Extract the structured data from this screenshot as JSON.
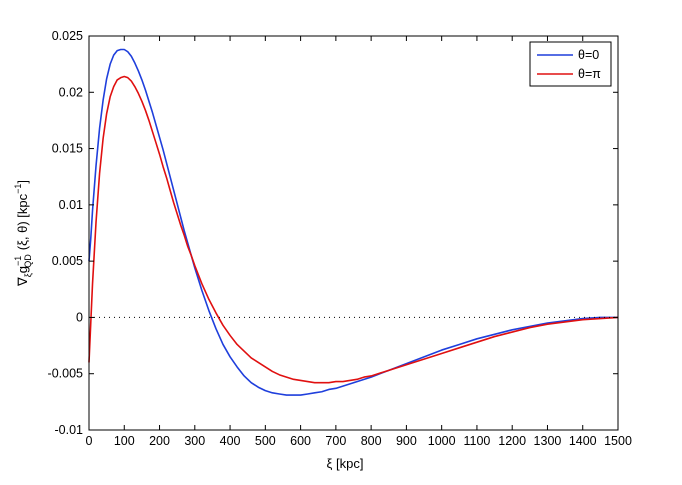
{
  "chart_data": {
    "type": "line",
    "xlabel": "ξ   [kpc]",
    "ylabel_main": "∇",
    "ylabel_sub": "ξ",
    "ylabel_g": "g",
    "ylabel_g_sup": "−1",
    "ylabel_g_sub": "QD",
    "ylabel_rest": "(ξ, θ)    [kpc",
    "ylabel_unit_sup": "−1",
    "ylabel_close": "]",
    "xlim": [
      0,
      1500
    ],
    "ylim": [
      -0.01,
      0.025
    ],
    "xticks": [
      0,
      100,
      200,
      300,
      400,
      500,
      600,
      700,
      800,
      900,
      1000,
      1100,
      1200,
      1300,
      1400,
      1500
    ],
    "xtick_labels": [
      "0",
      "100",
      "200",
      "300",
      "400",
      "500",
      "600",
      "700",
      "800",
      "900",
      "1000",
      "1100",
      "1200",
      "1300",
      "1400",
      "1500"
    ],
    "yticks": [
      -0.01,
      -0.005,
      0,
      0.005,
      0.01,
      0.015,
      0.02,
      0.025
    ],
    "ytick_labels": [
      "-0.01",
      "-0.005",
      "0",
      "0.005",
      "0.01",
      "0.015",
      "0.02",
      "0.025"
    ],
    "grid": false,
    "zero_line": "dotted",
    "legend_position": "top-right",
    "series": [
      {
        "name": "θ=0",
        "color": "#1f3fdc",
        "x": [
          0,
          5,
          10,
          20,
          30,
          40,
          50,
          60,
          70,
          80,
          90,
          100,
          110,
          120,
          130,
          140,
          150,
          160,
          170,
          180,
          190,
          200,
          210,
          220,
          230,
          240,
          250,
          260,
          270,
          280,
          290,
          300,
          320,
          340,
          360,
          380,
          400,
          420,
          440,
          460,
          480,
          500,
          520,
          540,
          560,
          580,
          600,
          620,
          640,
          660,
          680,
          700,
          720,
          740,
          760,
          780,
          800,
          850,
          900,
          950,
          1000,
          1050,
          1100,
          1150,
          1200,
          1250,
          1300,
          1350,
          1400,
          1450,
          1500
        ],
        "y": [
          0.005,
          0.007,
          0.0095,
          0.0135,
          0.0168,
          0.0193,
          0.0212,
          0.0225,
          0.0233,
          0.0237,
          0.0238,
          0.0238,
          0.0236,
          0.0232,
          0.0226,
          0.0219,
          0.0211,
          0.0202,
          0.0192,
          0.0182,
          0.0171,
          0.016,
          0.0149,
          0.0137,
          0.0125,
          0.0113,
          0.0101,
          0.0089,
          0.0077,
          0.0066,
          0.0055,
          0.0044,
          0.0024,
          0.0006,
          -0.001,
          -0.0024,
          -0.0035,
          -0.0044,
          -0.0052,
          -0.0058,
          -0.0062,
          -0.0065,
          -0.0067,
          -0.0068,
          -0.0069,
          -0.0069,
          -0.0069,
          -0.0068,
          -0.0067,
          -0.0066,
          -0.0064,
          -0.0063,
          -0.0061,
          -0.0059,
          -0.0057,
          -0.0055,
          -0.0053,
          -0.0047,
          -0.0041,
          -0.0035,
          -0.0029,
          -0.0024,
          -0.0019,
          -0.0015,
          -0.0011,
          -0.0008,
          -0.0005,
          -0.0003,
          -0.0001,
          0.0,
          0.0
        ]
      },
      {
        "name": "θ=π",
        "color": "#e01010",
        "x": [
          0,
          5,
          10,
          20,
          30,
          40,
          50,
          60,
          70,
          80,
          90,
          100,
          110,
          120,
          130,
          140,
          150,
          160,
          170,
          180,
          190,
          200,
          210,
          220,
          230,
          240,
          250,
          260,
          270,
          280,
          290,
          300,
          320,
          340,
          360,
          380,
          400,
          420,
          440,
          460,
          480,
          500,
          520,
          540,
          560,
          580,
          600,
          620,
          640,
          660,
          680,
          700,
          720,
          740,
          760,
          780,
          800,
          850,
          900,
          950,
          1000,
          1050,
          1100,
          1150,
          1200,
          1250,
          1300,
          1350,
          1400,
          1450,
          1500
        ],
        "y": [
          -0.004,
          -0.0005,
          0.003,
          0.0085,
          0.0128,
          0.0159,
          0.0181,
          0.0196,
          0.0205,
          0.0211,
          0.0213,
          0.0214,
          0.0213,
          0.021,
          0.0205,
          0.0199,
          0.0192,
          0.0184,
          0.0175,
          0.0165,
          0.0155,
          0.0145,
          0.0134,
          0.0124,
          0.0113,
          0.0102,
          0.0092,
          0.0082,
          0.0073,
          0.0063,
          0.0055,
          0.0046,
          0.003,
          0.0016,
          0.0004,
          -0.0007,
          -0.0016,
          -0.0024,
          -0.003,
          -0.0036,
          -0.004,
          -0.0044,
          -0.0048,
          -0.0051,
          -0.0053,
          -0.0055,
          -0.0056,
          -0.0057,
          -0.0058,
          -0.0058,
          -0.0058,
          -0.0057,
          -0.0057,
          -0.0056,
          -0.0055,
          -0.0053,
          -0.0052,
          -0.0047,
          -0.0042,
          -0.0037,
          -0.0032,
          -0.0027,
          -0.0022,
          -0.0017,
          -0.0013,
          -0.0009,
          -0.0006,
          -0.0004,
          -0.0002,
          -0.0001,
          0.0
        ]
      }
    ]
  }
}
